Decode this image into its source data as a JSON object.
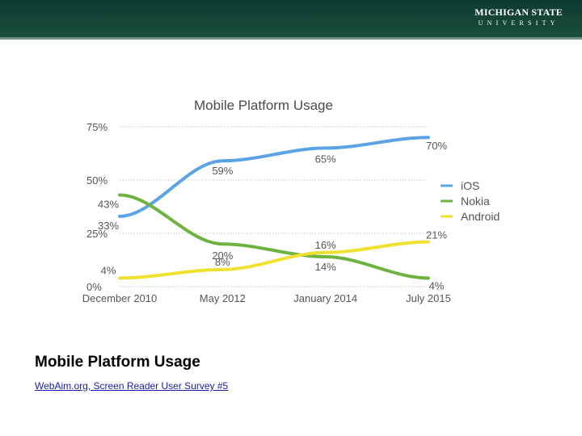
{
  "header": {
    "logo_line1": "MICHIGAN STATE",
    "logo_line2": "UNIVERSITY"
  },
  "caption": "Mobile Platform Usage",
  "source_link": "WebAim.org, Screen Reader User Survey #5",
  "chart_data": {
    "type": "line",
    "title": "Mobile Platform Usage",
    "xlabel": "",
    "ylabel": "",
    "categories": [
      "December 2010",
      "May 2012",
      "January 2014",
      "July 2015"
    ],
    "ylim": [
      0,
      75
    ],
    "yticks": [
      "0%",
      "25%",
      "50%",
      "75%"
    ],
    "grid": true,
    "legend": "right",
    "series": [
      {
        "name": "iOS",
        "color": "#5aa4e6",
        "values": [
          33,
          59,
          65,
          70
        ],
        "labels": [
          "33%",
          "59%",
          "65%",
          "70%"
        ]
      },
      {
        "name": "Nokia",
        "color": "#6cb33f",
        "values": [
          43,
          20,
          14,
          4
        ],
        "labels": [
          "43%",
          "20%",
          "14%",
          "4%"
        ]
      },
      {
        "name": "Android",
        "color": "#f0e030",
        "values": [
          4,
          8,
          16,
          21
        ],
        "labels": [
          "4%",
          "8%",
          "16%",
          "21%"
        ]
      }
    ]
  }
}
